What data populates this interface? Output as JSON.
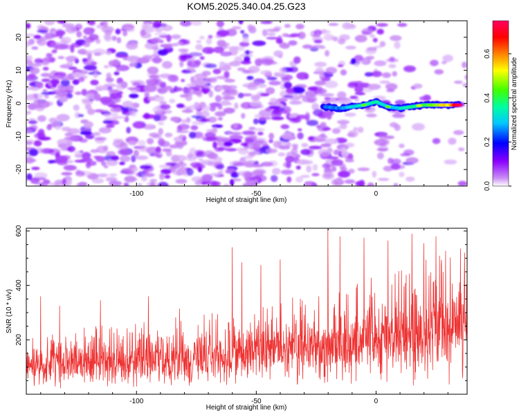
{
  "title": "KOM5.2025.340.04.25.G23",
  "chart_data": [
    {
      "type": "heatmap",
      "title": "KOM5.2025.340.04.25.G23",
      "xlabel": "Height of straight line (km)",
      "ylabel": "Frequency (Hz)",
      "xlim": [
        -146,
        38
      ],
      "ylim": [
        -25,
        25
      ],
      "xticks": [
        -100,
        -50,
        0
      ],
      "yticks": [
        -20,
        -10,
        0,
        10,
        20
      ],
      "signal_track": {
        "x": [
          -22,
          -15,
          -10,
          -5,
          0,
          5,
          10,
          15,
          20,
          25,
          30,
          35
        ],
        "y": [
          -1.0,
          -1.5,
          -1.0,
          -0.5,
          0.5,
          -1.0,
          -1.5,
          -1.0,
          -0.5,
          -0.5,
          -0.5,
          -0.5
        ],
        "amplitude": [
          0.25,
          0.25,
          0.3,
          0.35,
          0.35,
          0.3,
          0.3,
          0.35,
          0.4,
          0.45,
          0.55,
          0.7
        ]
      },
      "colorbar": {
        "label": "Normalized spectral amplitude",
        "range": [
          0.0,
          0.75
        ],
        "ticks": [
          0.0,
          0.2,
          0.4,
          0.6
        ],
        "tick_labels": [
          "0.0",
          "0.2",
          "0.4",
          "0.6"
        ],
        "colors": [
          "#ffffff",
          "#c98bf5",
          "#8a00ff",
          "#0000ff",
          "#00c8ff",
          "#00ffa0",
          "#40ff00",
          "#ffff00",
          "#ff8000",
          "#ff0000",
          "#ff0060"
        ]
      }
    },
    {
      "type": "line",
      "xlabel": "Height of straight line (km)",
      "ylabel": "SNR (10 * v/v)",
      "xlim": [
        -146,
        38
      ],
      "ylim": [
        0,
        610
      ],
      "xticks": [
        -100,
        -50,
        0
      ],
      "yticks": [
        200,
        400,
        600
      ],
      "line_color": "#ee3333",
      "trend": {
        "x": [
          -146,
          -120,
          -100,
          -80,
          -60,
          -40,
          -20,
          0,
          20,
          38
        ],
        "y": [
          110,
          115,
          120,
          130,
          140,
          155,
          180,
          200,
          230,
          250
        ]
      },
      "peaks": {
        "x": [
          -140,
          -132,
          -115,
          -95,
          -82,
          -60,
          -56,
          -48,
          -40,
          -20,
          -15,
          -5,
          5,
          15,
          20,
          25,
          37
        ],
        "y": [
          360,
          325,
          345,
          360,
          315,
          540,
          485,
          475,
          495,
          610,
          580,
          575,
          565,
          590,
          555,
          580,
          520
        ]
      }
    }
  ]
}
